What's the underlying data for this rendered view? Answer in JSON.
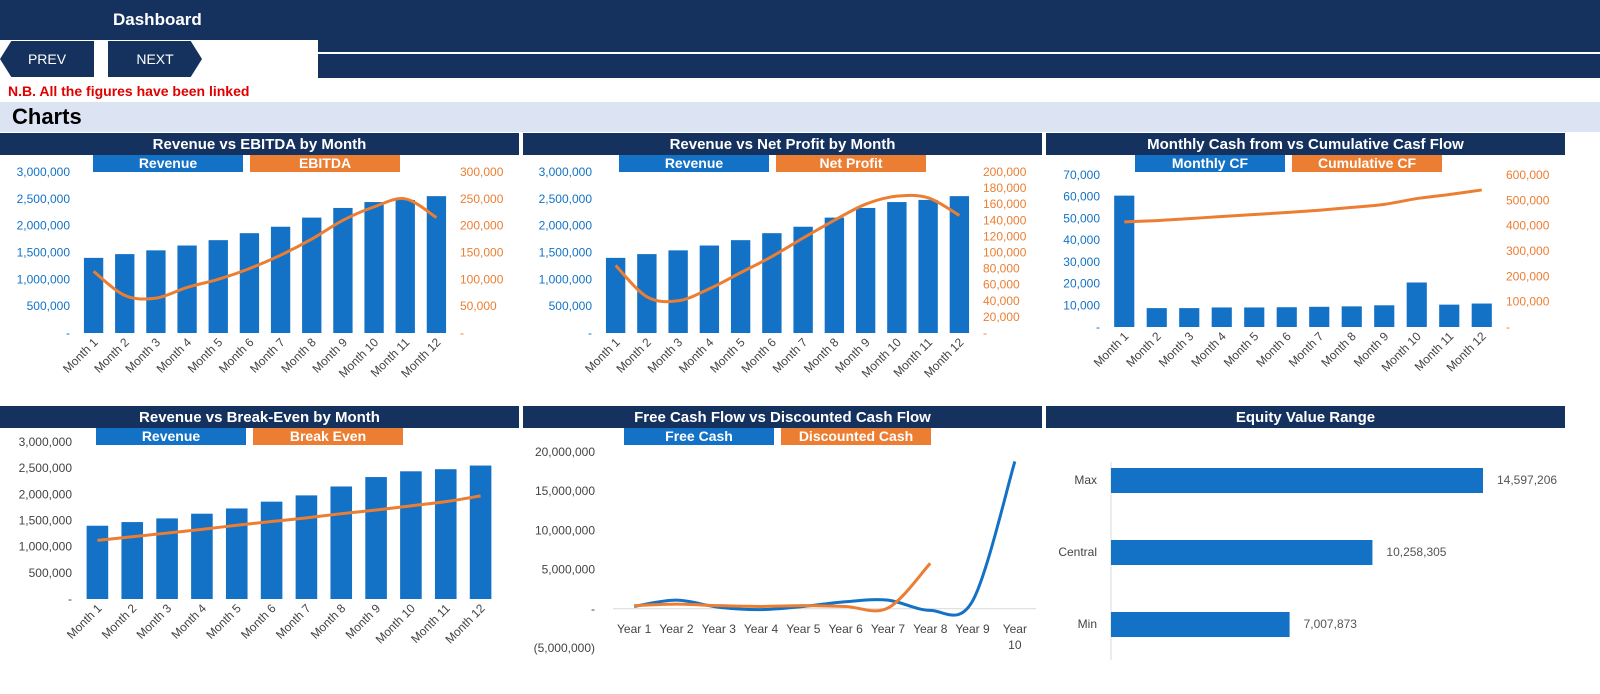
{
  "header": {
    "title": "Dashboard",
    "prev_label": "PREV",
    "next_label": "NEXT"
  },
  "note": "N.B. All the figures have been linked",
  "section_title": "Charts",
  "colors": {
    "navy": "#15325e",
    "blue": "#1372c5",
    "orange": "#ec7e33",
    "note_red": "#e00000"
  },
  "chart_data": [
    {
      "id": "c1",
      "type": "bar+line",
      "title": "Revenue vs EBITDA by Month",
      "categories": [
        "Month 1",
        "Month 2",
        "Month 3",
        "Month 4",
        "Month 5",
        "Month 6",
        "Month 7",
        "Month 8",
        "Month 9",
        "Month 10",
        "Month 11",
        "Month 12"
      ],
      "series": [
        {
          "name": "Revenue",
          "type": "bar",
          "axis": "left",
          "values": [
            1400000,
            1470000,
            1540000,
            1630000,
            1730000,
            1860000,
            1980000,
            2150000,
            2330000,
            2440000,
            2480000,
            2550000
          ]
        },
        {
          "name": "EBITDA",
          "type": "line",
          "axis": "right",
          "values": [
            115000,
            70000,
            65000,
            85000,
            100000,
            120000,
            145000,
            175000,
            210000,
            235000,
            250000,
            215000
          ]
        }
      ],
      "left_ticks": [
        "-",
        "500,000",
        "1,000,000",
        "1,500,000",
        "2,000,000",
        "2,500,000",
        "3,000,000"
      ],
      "right_ticks": [
        "-",
        "50,000",
        "100,000",
        "150,000",
        "200,000",
        "250,000",
        "300,000"
      ],
      "ylim": [
        0,
        3000000
      ],
      "y2lim": [
        0,
        300000
      ]
    },
    {
      "id": "c2",
      "type": "bar+line",
      "title": "Revenue vs Net Profit by Month",
      "categories": [
        "Month 1",
        "Month 2",
        "Month 3",
        "Month 4",
        "Month 5",
        "Month 6",
        "Month 7",
        "Month 8",
        "Month 9",
        "Month 10",
        "Month 11",
        "Month 12"
      ],
      "series": [
        {
          "name": "Revenue",
          "type": "bar",
          "axis": "left",
          "values": [
            1400000,
            1470000,
            1540000,
            1630000,
            1730000,
            1860000,
            1980000,
            2150000,
            2330000,
            2440000,
            2480000,
            2550000
          ]
        },
        {
          "name": "Net Profit",
          "type": "line",
          "axis": "right",
          "values": [
            84000,
            45000,
            40000,
            55000,
            75000,
            95000,
            118000,
            140000,
            160000,
            170000,
            168000,
            146000
          ]
        }
      ],
      "left_ticks": [
        "-",
        "500,000",
        "1,000,000",
        "1,500,000",
        "2,000,000",
        "2,500,000",
        "3,000,000"
      ],
      "right_ticks": [
        "-",
        "20,000",
        "40,000",
        "60,000",
        "80,000",
        "100,000",
        "120,000",
        "140,000",
        "160,000",
        "180,000",
        "200,000"
      ],
      "ylim": [
        0,
        3000000
      ],
      "y2lim": [
        0,
        200000
      ]
    },
    {
      "id": "c3",
      "type": "bar+line",
      "title": "Monthly Cash from vs Cumulative Casf Flow",
      "categories": [
        "Month 1",
        "Month 2",
        "Month 3",
        "Month 4",
        "Month 5",
        "Month 6",
        "Month 7",
        "Month 8",
        "Month 9",
        "Month 10",
        "Month 11",
        "Month 12"
      ],
      "series": [
        {
          "name": "Monthly CF",
          "type": "bar",
          "axis": "left",
          "values": [
            60500,
            8700,
            8700,
            9000,
            9000,
            9100,
            9300,
            9500,
            10000,
            20500,
            10300,
            10800
          ]
        },
        {
          "name": "Cumulative CF",
          "type": "line",
          "axis": "right",
          "values": [
            415000,
            420000,
            428000,
            436000,
            444000,
            452000,
            461000,
            472000,
            484000,
            507000,
            523000,
            541000
          ]
        }
      ],
      "left_ticks": [
        "-",
        "10,000",
        "20,000",
        "30,000",
        "40,000",
        "50,000",
        "60,000",
        "70,000"
      ],
      "right_ticks": [
        "-",
        "100,000",
        "200,000",
        "300,000",
        "400,000",
        "500,000",
        "600,000"
      ],
      "ylim": [
        0,
        70000
      ],
      "y2lim": [
        0,
        600000
      ]
    },
    {
      "id": "c4",
      "type": "bar+line",
      "title": "Revenue vs Break-Even by Month",
      "categories": [
        "Month 1",
        "Month 2",
        "Month 3",
        "Month 4",
        "Month 5",
        "Month 6",
        "Month 7",
        "Month 8",
        "Month 9",
        "Month 10",
        "Month 11",
        "Month 12"
      ],
      "series": [
        {
          "name": "Revenue",
          "type": "bar",
          "axis": "left",
          "values": [
            1400000,
            1470000,
            1540000,
            1630000,
            1730000,
            1860000,
            1980000,
            2150000,
            2330000,
            2440000,
            2480000,
            2550000
          ]
        },
        {
          "name": "Break Even",
          "type": "line",
          "axis": "left",
          "values": [
            1120000,
            1190000,
            1260000,
            1330000,
            1410000,
            1480000,
            1550000,
            1630000,
            1700000,
            1780000,
            1860000,
            1970000
          ]
        }
      ],
      "left_ticks": [
        "-",
        "500,000",
        "1,000,000",
        "1,500,000",
        "2,000,000",
        "2,500,000",
        "3,000,000"
      ],
      "ylim": [
        0,
        3000000
      ]
    },
    {
      "id": "c5",
      "type": "line",
      "title": "Free Cash Flow vs Discounted Cash Flow",
      "categories": [
        "Year 1",
        "Year 2",
        "Year 3",
        "Year 4",
        "Year 5",
        "Year 6",
        "Year 7",
        "Year 8",
        "Year 9",
        "Year 10"
      ],
      "series": [
        {
          "name": "Free Cash",
          "values": [
            300000,
            1100000,
            200000,
            -100000,
            300000,
            900000,
            1100000,
            -200000,
            1000000,
            18800000
          ]
        },
        {
          "name": "Discounted Cash",
          "values": [
            400000,
            600000,
            400000,
            300000,
            400000,
            300000,
            100000,
            5800000,
            null,
            null
          ]
        }
      ],
      "left_ticks": [
        "(5,000,000)",
        "-",
        "5,000,000",
        "10,000,000",
        "15,000,000",
        "20,000,000"
      ],
      "ylim": [
        -5000000,
        20000000
      ]
    },
    {
      "id": "c6",
      "type": "hbar",
      "title": "Equity Value Range",
      "categories": [
        "Max",
        "Central",
        "Min"
      ],
      "values": [
        14597206,
        10258305,
        7007873
      ],
      "labels": [
        "14,597,206",
        "10,258,305",
        "7,007,873"
      ],
      "xlim": [
        0,
        15500000
      ]
    }
  ]
}
